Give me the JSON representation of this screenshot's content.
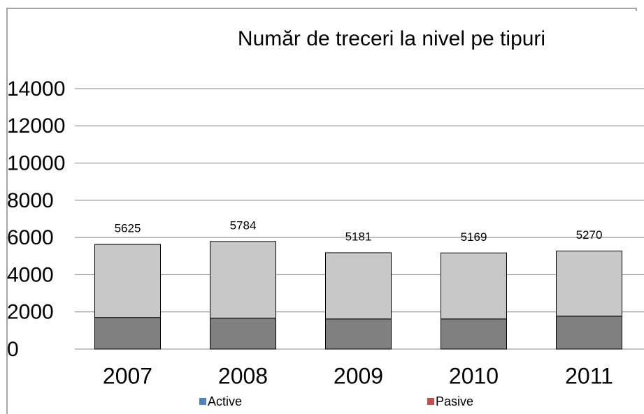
{
  "chart_data": {
    "type": "stacked_bar",
    "title": "Număr de treceri la nivel pe tipuri",
    "categories": [
      "2007",
      "2008",
      "2009",
      "2010",
      "2011"
    ],
    "series": [
      {
        "name": "Active",
        "color": "#808080",
        "legend_color": "#4f81bd",
        "values": [
          1700,
          1660,
          1620,
          1620,
          1770
        ]
      },
      {
        "name": "Pasive",
        "color": "#c8c8c8",
        "legend_color": "#c0504d",
        "values": [
          3925,
          4124,
          3561,
          3549,
          3500
        ]
      }
    ],
    "totals": [
      5625,
      5784,
      5181,
      5169,
      5270
    ],
    "ylim": [
      0,
      14000
    ],
    "yticks": [
      0,
      2000,
      4000,
      6000,
      8000,
      10000,
      12000,
      14000
    ],
    "grid": true
  }
}
